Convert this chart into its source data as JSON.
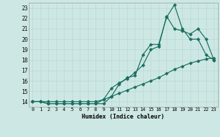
{
  "xlabel": "Humidex (Indice chaleur)",
  "bg_color": "#cde8e4",
  "grid_color": "#b8d8d2",
  "line_color": "#1a6e60",
  "xlim": [
    -0.5,
    23.5
  ],
  "ylim": [
    13.5,
    23.5
  ],
  "xticks": [
    0,
    1,
    2,
    3,
    4,
    5,
    6,
    7,
    8,
    9,
    10,
    11,
    12,
    13,
    14,
    15,
    16,
    17,
    18,
    19,
    20,
    21,
    22,
    23
  ],
  "yticks": [
    14,
    15,
    16,
    17,
    18,
    19,
    20,
    21,
    22,
    23
  ],
  "line1_x": [
    0,
    1,
    2,
    3,
    4,
    5,
    6,
    7,
    8,
    9,
    10,
    11,
    12,
    13,
    14,
    15,
    16,
    17,
    18,
    19,
    20,
    21,
    22,
    23
  ],
  "line1_y": [
    14,
    14,
    13.8,
    13.8,
    13.8,
    13.8,
    13.8,
    13.8,
    13.8,
    13.8,
    14.5,
    15.7,
    16.3,
    16.5,
    18.5,
    19.5,
    19.5,
    22.1,
    23.3,
    21.0,
    20.0,
    20.0,
    18.5,
    18.0
  ],
  "line2_x": [
    0,
    1,
    2,
    3,
    4,
    5,
    6,
    7,
    8,
    9,
    10,
    11,
    12,
    13,
    14,
    15,
    16,
    17,
    18,
    19,
    20,
    21,
    22,
    23
  ],
  "line2_y": [
    14,
    14,
    13.8,
    13.8,
    13.8,
    13.8,
    13.8,
    13.8,
    13.8,
    14.2,
    15.3,
    15.8,
    16.2,
    16.8,
    17.5,
    19.0,
    19.3,
    22.2,
    21.0,
    20.8,
    20.5,
    21.0,
    20.0,
    18.0
  ],
  "line3_x": [
    0,
    1,
    2,
    3,
    4,
    5,
    6,
    7,
    8,
    9,
    10,
    11,
    12,
    13,
    14,
    15,
    16,
    17,
    18,
    19,
    20,
    21,
    22,
    23
  ],
  "line3_y": [
    14,
    14,
    14,
    14,
    14,
    14,
    14,
    14,
    14,
    14.2,
    14.5,
    14.8,
    15.1,
    15.4,
    15.7,
    16.0,
    16.3,
    16.7,
    17.1,
    17.4,
    17.7,
    17.9,
    18.1,
    18.2
  ],
  "marker": "D",
  "markersize": 2.5,
  "linewidth": 0.9
}
